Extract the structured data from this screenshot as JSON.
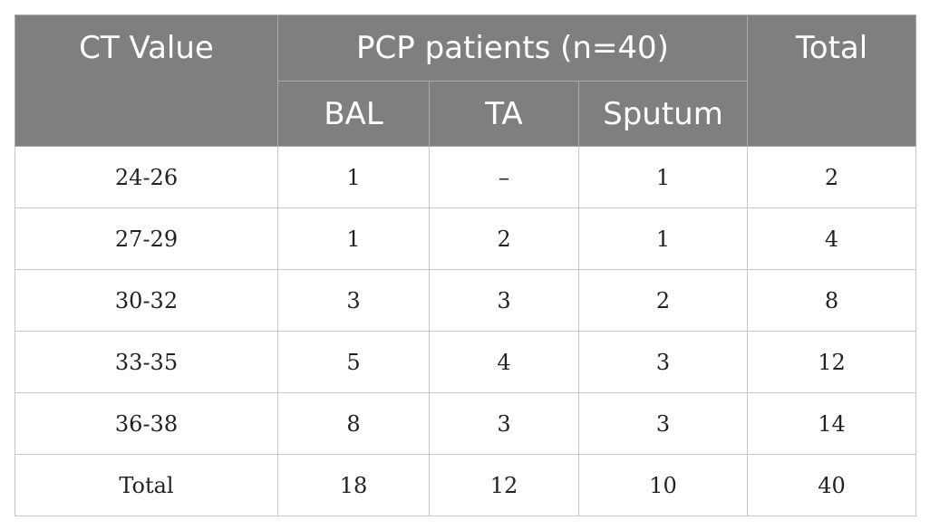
{
  "table": {
    "headers": {
      "ct_value": "CT Value",
      "group": "PCP patients (n=40)",
      "total": "Total",
      "sub": [
        "BAL",
        "TA",
        "Sputum"
      ]
    },
    "rows": [
      [
        "24-26",
        "1",
        "–",
        "1",
        "2"
      ],
      [
        "27-29",
        "1",
        "2",
        "1",
        "4"
      ],
      [
        "30-32",
        "3",
        "3",
        "2",
        "8"
      ],
      [
        "33-35",
        "5",
        "4",
        "3",
        "12"
      ],
      [
        "36-38",
        "8",
        "3",
        "3",
        "14"
      ],
      [
        "Total",
        "18",
        "12",
        "10",
        "40"
      ]
    ]
  }
}
